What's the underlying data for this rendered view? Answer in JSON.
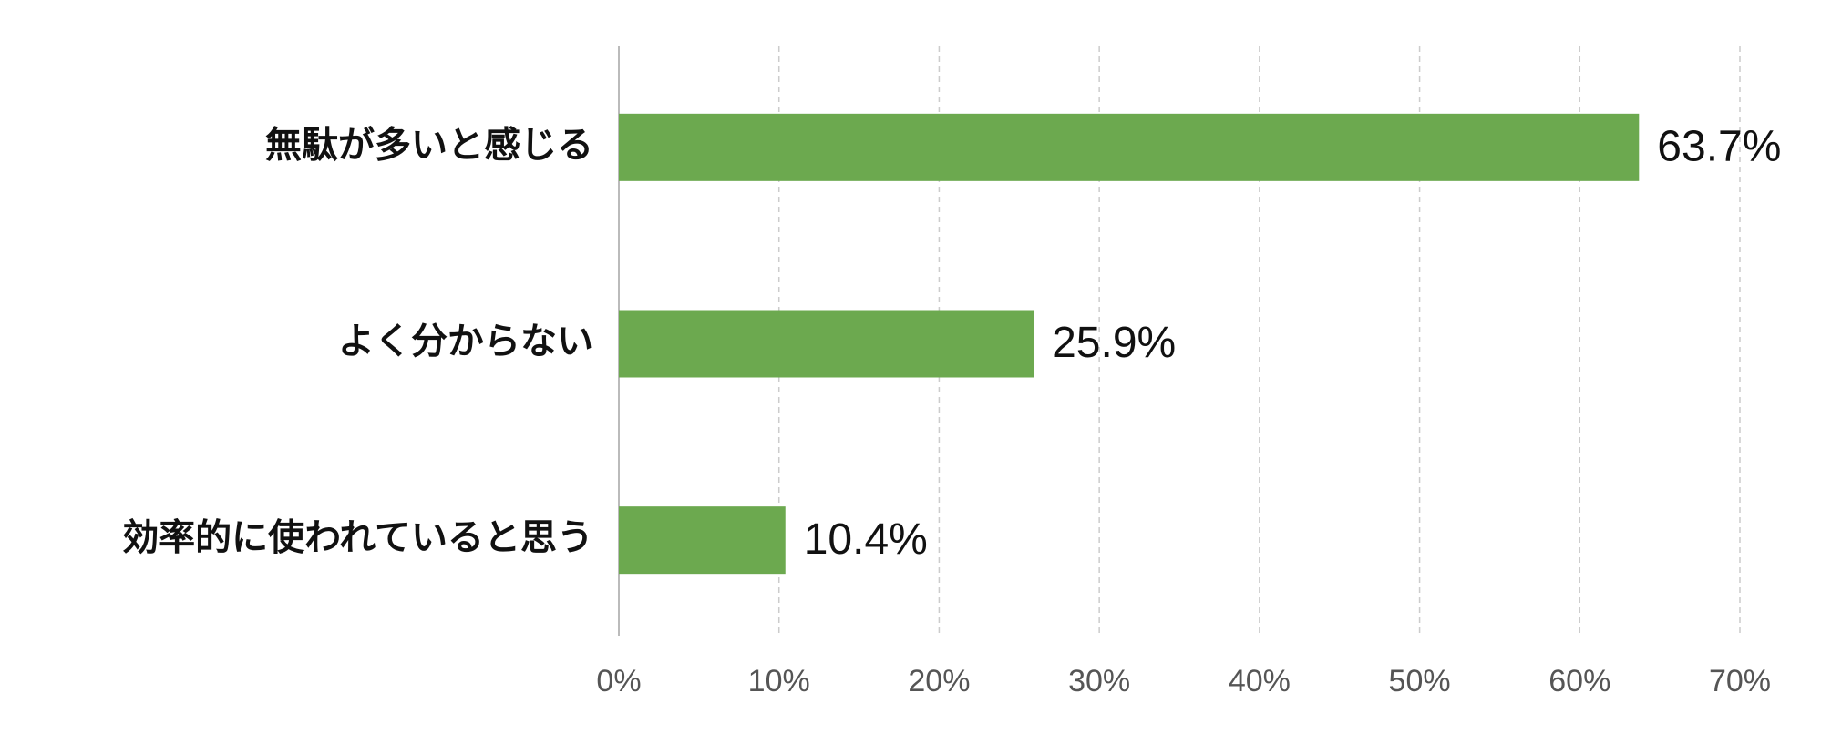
{
  "chart_data": {
    "type": "bar",
    "orientation": "horizontal",
    "categories": [
      "無駄が多いと感じる",
      "よく分からない",
      "効率的に使われていると思う"
    ],
    "values": [
      63.7,
      25.9,
      10.4
    ],
    "value_labels": [
      "63.7%",
      "25.9%",
      "10.4%"
    ],
    "color": "#6ca94f",
    "xlim": [
      0,
      70
    ],
    "xticks": [
      {
        "value": 0,
        "label": "0%"
      },
      {
        "value": 10,
        "label": "10%"
      },
      {
        "value": 20,
        "label": "20%"
      },
      {
        "value": 30,
        "label": "30%"
      },
      {
        "value": 40,
        "label": "40%"
      },
      {
        "value": 50,
        "label": "50%"
      },
      {
        "value": 60,
        "label": "60%"
      },
      {
        "value": 70,
        "label": "70%"
      }
    ],
    "grid": true
  }
}
